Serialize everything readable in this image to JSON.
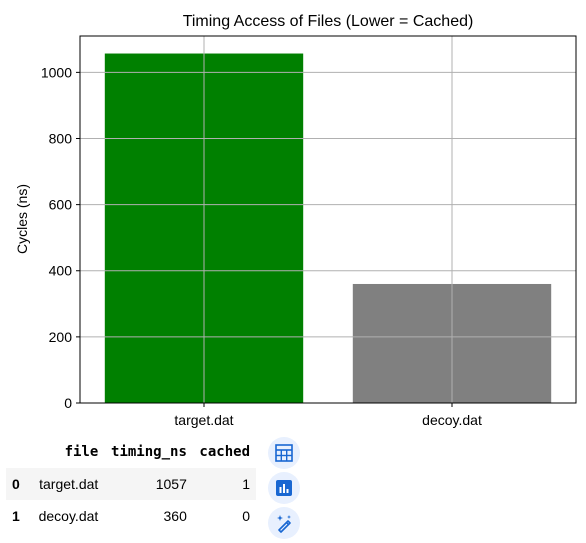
{
  "chart_data": {
    "type": "bar",
    "title": "Timing Access of Files (Lower = Cached)",
    "ylabel": "Cycles (ns)",
    "xlabel": "",
    "categories": [
      "target.dat",
      "decoy.dat"
    ],
    "values": [
      1057,
      360
    ],
    "colors": [
      "#008000",
      "#808080"
    ],
    "ylim": [
      0,
      1110
    ],
    "yticks": [
      0,
      200,
      400,
      600,
      800,
      1000
    ],
    "grid": true
  },
  "table": {
    "headers": [
      "",
      "file",
      "timing_ns",
      "cached"
    ],
    "rows": [
      {
        "index": "0",
        "file": "target.dat",
        "timing_ns": "1057",
        "cached": "1"
      },
      {
        "index": "1",
        "file": "decoy.dat",
        "timing_ns": "360",
        "cached": "0"
      }
    ]
  },
  "buttons": [
    {
      "icon": "table-icon"
    },
    {
      "icon": "bar-chart-icon"
    },
    {
      "icon": "magic-wand-icon"
    }
  ],
  "colors": {
    "accent": "#1967d2",
    "button_bg": "#e8f0fe"
  }
}
